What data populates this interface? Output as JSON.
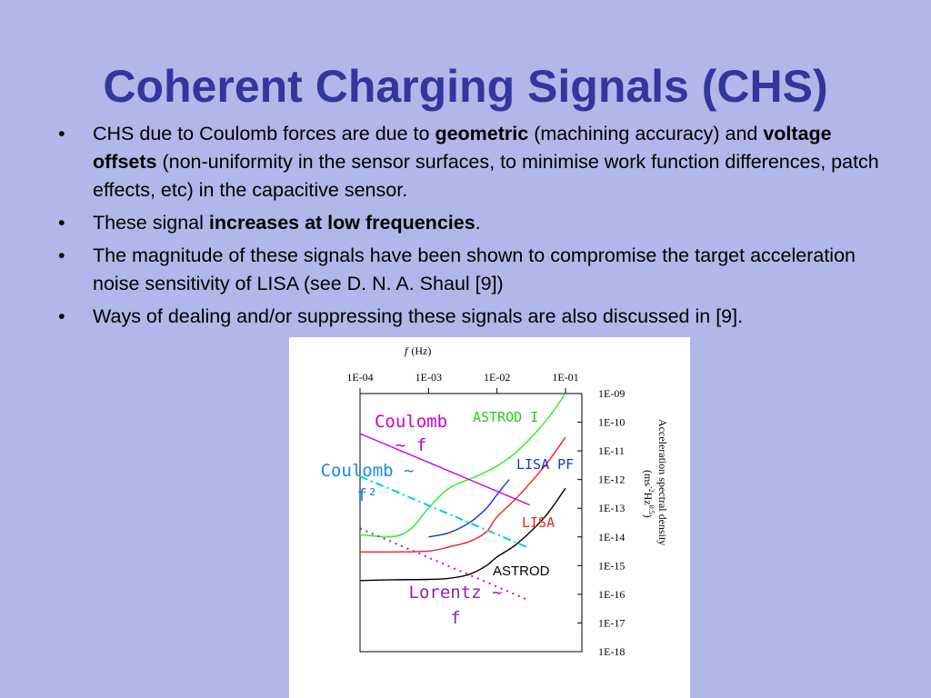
{
  "slide": {
    "title": "Coherent Charging Signals (CHS)",
    "bullet_glyph": "•",
    "bullets": [
      {
        "segments": [
          {
            "text": "CHS due to Coulomb forces are due to ",
            "bold": false
          },
          {
            "text": "geometric",
            "bold": true
          },
          {
            "text": " (machining accuracy) and ",
            "bold": false
          },
          {
            "text": "voltage offsets",
            "bold": true
          },
          {
            "text": " (non-uniformity in the sensor surfaces, to minimise work function differences, patch effects, etc) in the capacitive sensor.",
            "bold": false
          }
        ]
      },
      {
        "segments": [
          {
            "text": "These signal ",
            "bold": false
          },
          {
            "text": "increases at low frequencies",
            "bold": true
          },
          {
            "text": ".",
            "bold": false
          }
        ]
      },
      {
        "segments": [
          {
            "text": "The magnitude of these signals have been shown to compromise the target acceleration noise sensitivity of LISA (see D. N. A. Shaul [9])",
            "bold": false
          }
        ]
      },
      {
        "segments": [
          {
            "text": "Ways of dealing and/or suppressing these signals are also discussed in [9].",
            "bold": false
          }
        ]
      }
    ]
  },
  "chart_data": {
    "type": "line",
    "x_scale": "log",
    "y_scale": "log",
    "x_axis": {
      "position": "top",
      "label_symbol": "f",
      "label_unit": "(Hz)",
      "xlim": [
        0.0001,
        0.1
      ],
      "ticks": [
        0.0001,
        0.001,
        0.01,
        0.1
      ],
      "tick_labels": [
        "1E-04",
        "1E-03",
        "1E-02",
        "1E-01"
      ]
    },
    "y_axis": {
      "position": "right",
      "label_line1": "Acceleration spectral density",
      "label_line2_prefix": "(ms",
      "label_line2_sup1": "-2",
      "label_line2_mid": "Hz",
      "label_line2_sup2": "0.5",
      "label_line2_suffix": ")",
      "ylim": [
        1e-18,
        1e-09
      ],
      "ticks": [
        1e-09,
        1e-10,
        1e-11,
        1e-12,
        1e-13,
        1e-14,
        1e-15,
        1e-16,
        1e-17,
        1e-18
      ],
      "tick_labels": [
        "1E-09",
        "1E-10",
        "1E-11",
        "1E-12",
        "1E-13",
        "1E-14",
        "1E-15",
        "1E-16",
        "1E-17",
        "1E-18"
      ]
    },
    "grid": false,
    "legend": "none",
    "series": [
      {
        "name": "ASTROD I",
        "color": "#22ee22",
        "dash": "solid",
        "x": [
          0.0001,
          0.00015,
          0.00025,
          0.0004,
          0.0006,
          0.001,
          0.002,
          0.005,
          0.01,
          0.02,
          0.05,
          0.1
        ],
        "y": [
          1.2e-14,
          1.1e-14,
          1e-14,
          1.2e-14,
          2.3e-14,
          1e-13,
          5e-13,
          1.3e-12,
          3e-12,
          1e-11,
          1e-10,
          1e-09
        ]
      },
      {
        "name": "LISA PF",
        "color": "#1a33cc",
        "dash": "solid",
        "x": [
          0.001,
          0.002,
          0.004,
          0.007,
          0.01,
          0.015
        ],
        "y": [
          1e-14,
          1.4e-14,
          3.2e-14,
          1e-13,
          3e-13,
          1e-12
        ]
      },
      {
        "name": "LISA",
        "color": "#ee2222",
        "dash": "solid",
        "x": [
          0.0001,
          0.0003,
          0.001,
          0.002,
          0.004,
          0.007,
          0.01,
          0.02,
          0.05,
          0.1
        ],
        "y": [
          3e-15,
          3e-15,
          3.2e-15,
          4.5e-15,
          7e-15,
          1.5e-14,
          5e-14,
          2.5e-13,
          3e-12,
          3e-11
        ]
      },
      {
        "name": "ASTROD",
        "color": "#000000",
        "dash": "solid",
        "x": [
          0.0001,
          0.0003,
          0.001,
          0.002,
          0.004,
          0.007,
          0.01,
          0.02,
          0.05,
          0.1
        ],
        "y": [
          3e-16,
          3.2e-16,
          3.3e-16,
          3.6e-16,
          5e-16,
          1e-15,
          2e-15,
          6e-15,
          5e-14,
          5e-13
        ]
      },
      {
        "name": "Coulomb ~ f",
        "color": "#cc00cc",
        "dash": "solid",
        "x": [
          0.0001,
          0.03
        ],
        "y": [
          4e-11,
          1.3e-13
        ]
      },
      {
        "name": "Coulomb ~ f²",
        "color": "#00ccdd",
        "dash": "dashdot",
        "x": [
          0.0001,
          0.03
        ],
        "y": [
          1.3e-12,
          4e-15
        ]
      },
      {
        "name": "Lorentz ~ f",
        "color": "#aa22aa",
        "dash": "dot",
        "x": [
          0.0001,
          0.03
        ],
        "y": [
          2e-14,
          6e-17
        ]
      }
    ],
    "annotations": [
      {
        "id": "coulomb-f",
        "line1": "Coulomb",
        "line2": "~ f",
        "color": "#cc00cc"
      },
      {
        "id": "astrod-i",
        "line1": "ASTROD I",
        "color": "#22cc22"
      },
      {
        "id": "coulomb-f2",
        "line1": "Coulomb ~",
        "line2": "f²",
        "color": "#1e88e5"
      },
      {
        "id": "lisa-pf",
        "line1": "LISA PF",
        "color": "#1a33cc"
      },
      {
        "id": "lisa",
        "line1": "LISA",
        "color": "#ee2222"
      },
      {
        "id": "astrod",
        "line1": "ASTROD",
        "color": "#000000"
      },
      {
        "id": "lorentz-f",
        "line1": "Lorentz ~",
        "line2": "f",
        "color": "#8e24aa"
      }
    ]
  }
}
